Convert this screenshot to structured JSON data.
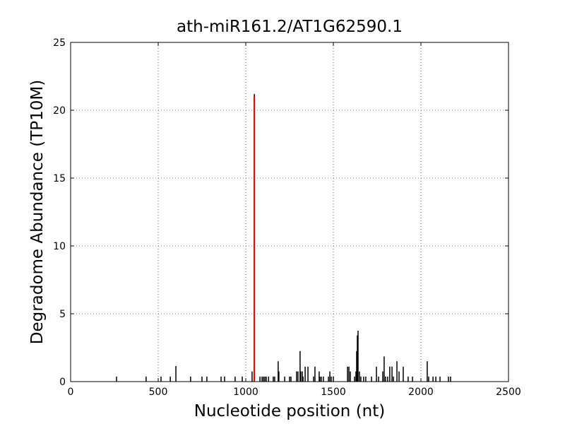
{
  "chart_data": {
    "type": "vlines",
    "title": "ath-miR161.2/AT1G62590.1",
    "x_label": "Nucleotide position (nt)",
    "y_label": "Degradome Abundance (TP10M)",
    "xlim": [
      0,
      2500
    ],
    "xticks": [
      0,
      500,
      1000,
      1500,
      2000,
      2500
    ],
    "ylim": [
      0,
      25
    ],
    "yticks": [
      0,
      5,
      10,
      15,
      20,
      25
    ],
    "grid": true,
    "series": [
      {
        "color": "#000000",
        "x": [
          262,
          431,
          516,
          569,
          601,
          685,
          750,
          778,
          859,
          879,
          939,
          980,
          1036,
          1049,
          1081,
          1093,
          1101,
          1109,
          1117,
          1130,
          1157,
          1165,
          1185,
          1189,
          1222,
          1250,
          1258,
          1290,
          1298,
          1310,
          1314,
          1323,
          1327,
          1339,
          1355,
          1387,
          1395,
          1419,
          1423,
          1431,
          1443,
          1472,
          1480,
          1488,
          1500,
          1581,
          1589,
          1597,
          1621,
          1629,
          1633,
          1637,
          1641,
          1649,
          1657,
          1673,
          1685,
          1718,
          1746,
          1758,
          1782,
          1790,
          1798,
          1810,
          1822,
          1835,
          1843,
          1863,
          1875,
          1899,
          1927,
          1952,
          2036,
          2044,
          2069,
          2085,
          2109,
          2157,
          2169
        ],
        "values": [
          0.37,
          0.37,
          0.37,
          0.37,
          1.15,
          0.37,
          0.37,
          0.37,
          0.37,
          0.37,
          0.37,
          0.37,
          0.75,
          21.2,
          0.37,
          0.37,
          0.37,
          0.37,
          0.37,
          0.37,
          0.37,
          0.37,
          1.5,
          0.75,
          0.37,
          0.37,
          0.37,
          0.75,
          0.75,
          2.25,
          0.75,
          0.75,
          0.37,
          1.1,
          1.1,
          0.37,
          1.1,
          0.75,
          0.37,
          0.37,
          0.37,
          0.37,
          0.75,
          0.37,
          0.37,
          1.1,
          1.1,
          0.75,
          0.37,
          0.75,
          2.25,
          3.4,
          3.75,
          0.75,
          0.37,
          0.37,
          0.37,
          0.37,
          1.1,
          0.37,
          0.75,
          1.85,
          0.37,
          0.37,
          1.1,
          1.1,
          0.37,
          1.5,
          0.75,
          1.1,
          0.37,
          0.37,
          1.5,
          0.37,
          0.37,
          0.37,
          0.37,
          0.37,
          0.37
        ]
      },
      {
        "color": "#ff0000",
        "x": [
          1048
        ],
        "values": [
          21
        ]
      }
    ]
  }
}
